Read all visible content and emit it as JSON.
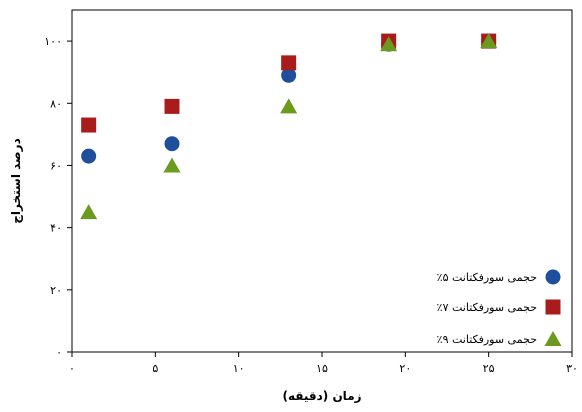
{
  "chart_data": {
    "type": "scatter",
    "xlabel": "زمان (دقیقه)",
    "ylabel": "درصد استخراج",
    "xlim": [
      0,
      30
    ],
    "ylim": [
      0,
      110
    ],
    "xticks": [
      0,
      5,
      10,
      15,
      20,
      25,
      30
    ],
    "yticks": [
      0,
      20,
      40,
      60,
      80,
      100
    ],
    "xtick_labels": [
      "۰",
      "۵",
      "۱۰",
      "۱۵",
      "۲۰",
      "۲۵",
      "۳۰"
    ],
    "ytick_labels": [
      "۰",
      "۲۰",
      "۴۰",
      "۶۰",
      "۸۰",
      "۱۰۰"
    ],
    "grid": false,
    "legend_position": "bottom-right",
    "series": [
      {
        "name": "٪۵ حجمی سورفکتانت",
        "marker": "circle",
        "color": "#1f4e9c",
        "x": [
          1,
          6,
          13,
          19,
          25
        ],
        "y": [
          63,
          67,
          89,
          99,
          100
        ]
      },
      {
        "name": "٪۷ حجمی سورفکتانت",
        "marker": "square",
        "color": "#a81c1c",
        "x": [
          1,
          6,
          13,
          19,
          25
        ],
        "y": [
          73,
          79,
          93,
          100,
          100
        ]
      },
      {
        "name": "٪۹ حجمی سورفکتانت",
        "marker": "triangle",
        "color": "#6b9a1f",
        "x": [
          1,
          6,
          13,
          19,
          25
        ],
        "y": [
          45,
          60,
          79,
          99,
          100
        ]
      }
    ]
  }
}
